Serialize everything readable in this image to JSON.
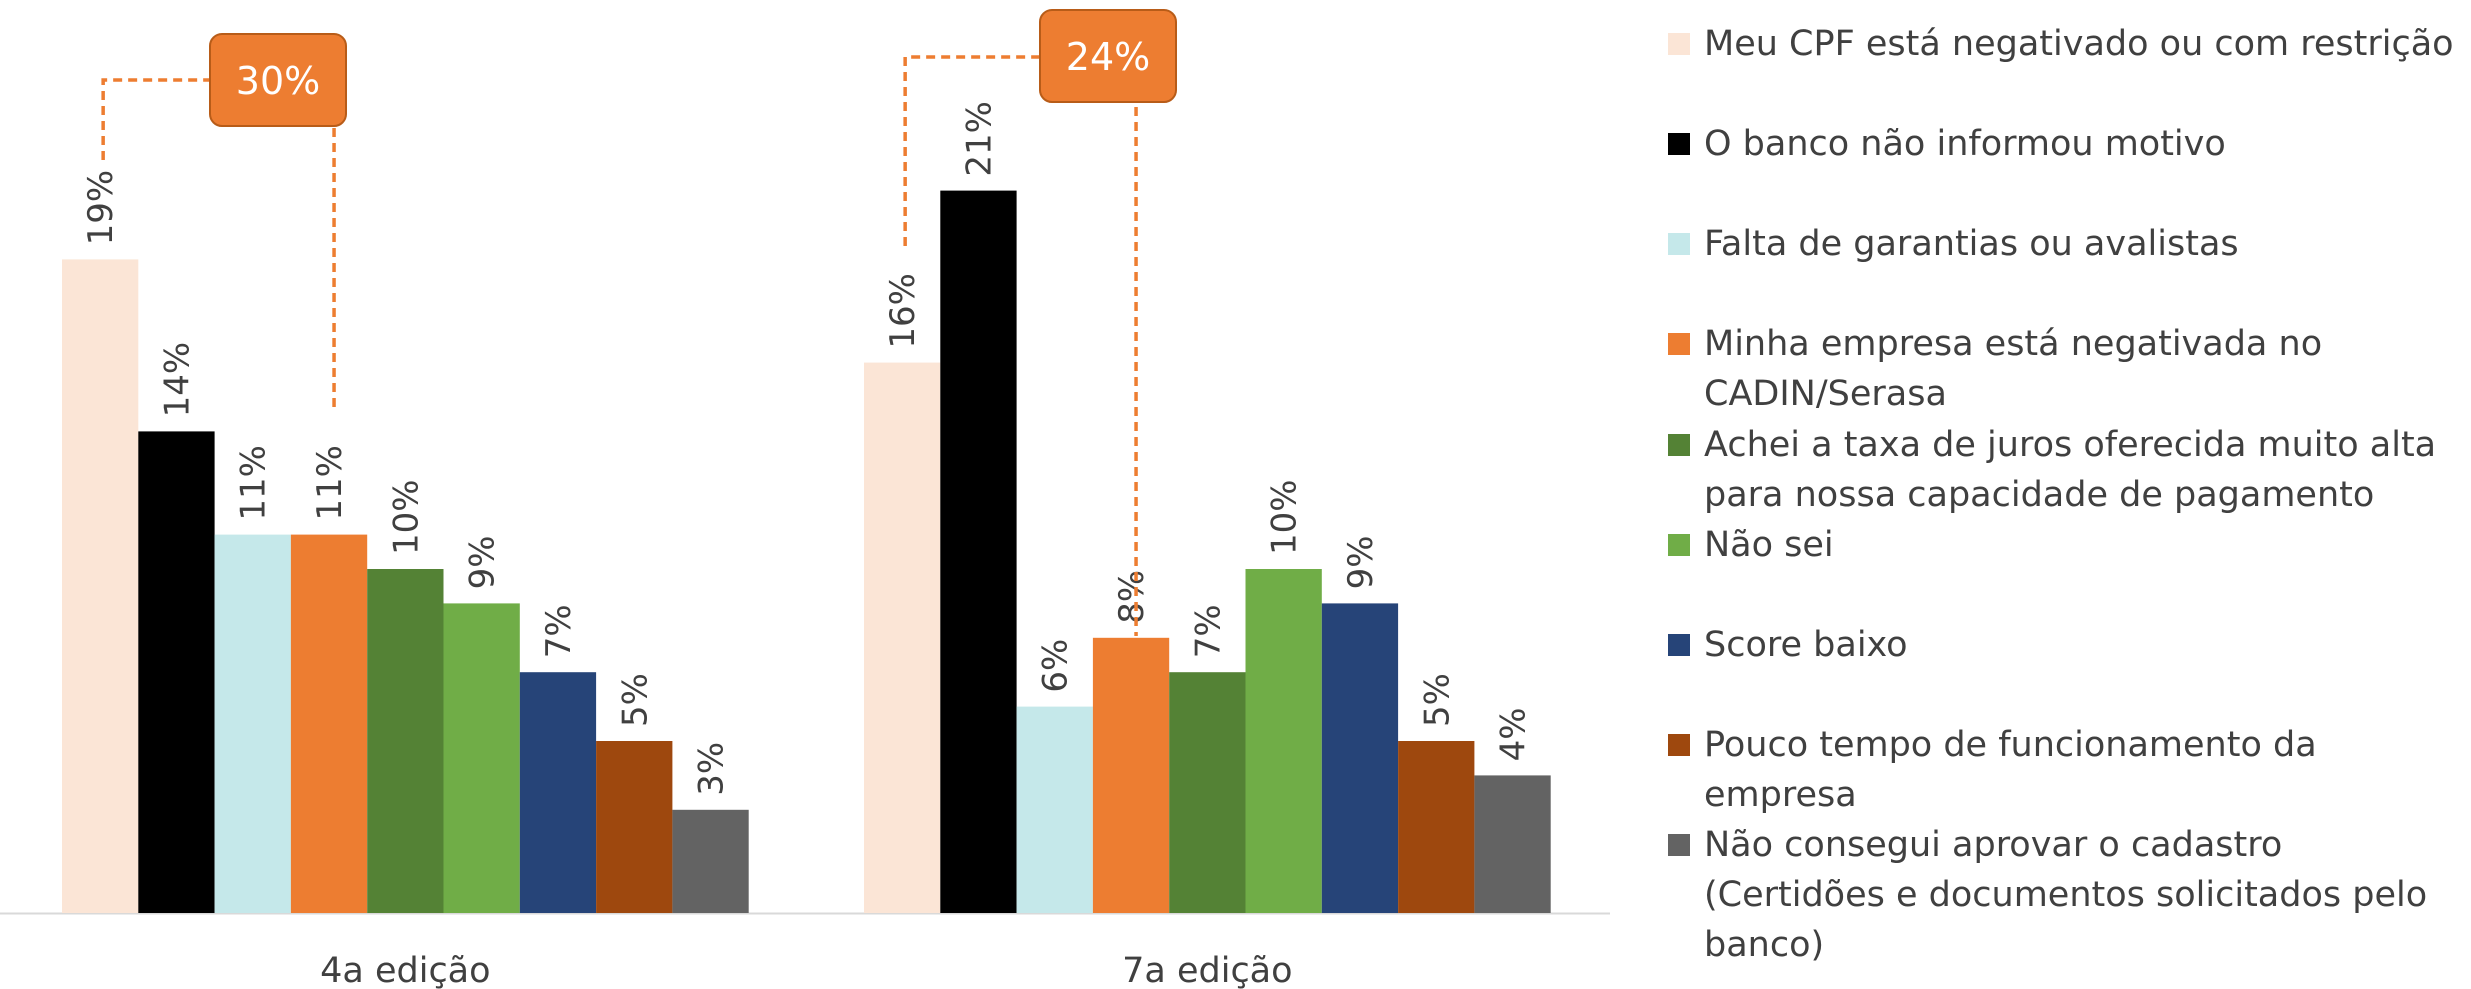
{
  "chart_data": {
    "type": "bar",
    "categories": [
      "4a edição",
      "7a edição"
    ],
    "series": [
      {
        "name": "Meu CPF está negativado ou com restrição",
        "color": "#FBE5D6",
        "values": [
          19,
          16
        ]
      },
      {
        "name": "O banco não informou motivo",
        "color": "#000000",
        "values": [
          14,
          21
        ]
      },
      {
        "name": "Falta de garantias ou avalistas",
        "color": "#C5E8EA",
        "values": [
          11,
          6
        ]
      },
      {
        "name": "Minha empresa está negativada no CADIN/Serasa",
        "color": "#ED7D31",
        "values": [
          11,
          8
        ]
      },
      {
        "name": "Achei a taxa de juros oferecida muito alta para nossa capacidade de pagamento",
        "color": "#548235",
        "values": [
          10,
          7
        ]
      },
      {
        "name": "Não sei",
        "color": "#70AD47",
        "values": [
          9,
          10
        ]
      },
      {
        "name": "Score baixo",
        "color": "#264478",
        "values": [
          7,
          9
        ]
      },
      {
        "name": "Pouco tempo de funcionamento da empresa",
        "color": "#9E480E",
        "values": [
          5,
          5
        ]
      },
      {
        "name": "Não consegui aprovar o cadastro (Certidões e documentos solicitados pelo banco)",
        "color": "#636363",
        "values": [
          3,
          4
        ]
      }
    ],
    "data_labels": [
      [
        "19%",
        "14%",
        "11%",
        "11%",
        "10%",
        "9%",
        "7%",
        "5%",
        "3%"
      ],
      [
        "16%",
        "21%",
        "6%",
        "8%",
        "7%",
        "10%",
        "9%",
        "5%",
        "4%"
      ]
    ],
    "annotations": [
      {
        "text": "30%",
        "group": 0,
        "links": [
          0,
          3
        ]
      },
      {
        "text": "24%",
        "group": 1,
        "links": [
          0,
          3
        ]
      }
    ],
    "annotation_color": "#ED7D31",
    "ylim": [
      0,
      25
    ],
    "grid": false,
    "legend_position": "right",
    "title": "",
    "xlabel": "",
    "ylabel": ""
  }
}
